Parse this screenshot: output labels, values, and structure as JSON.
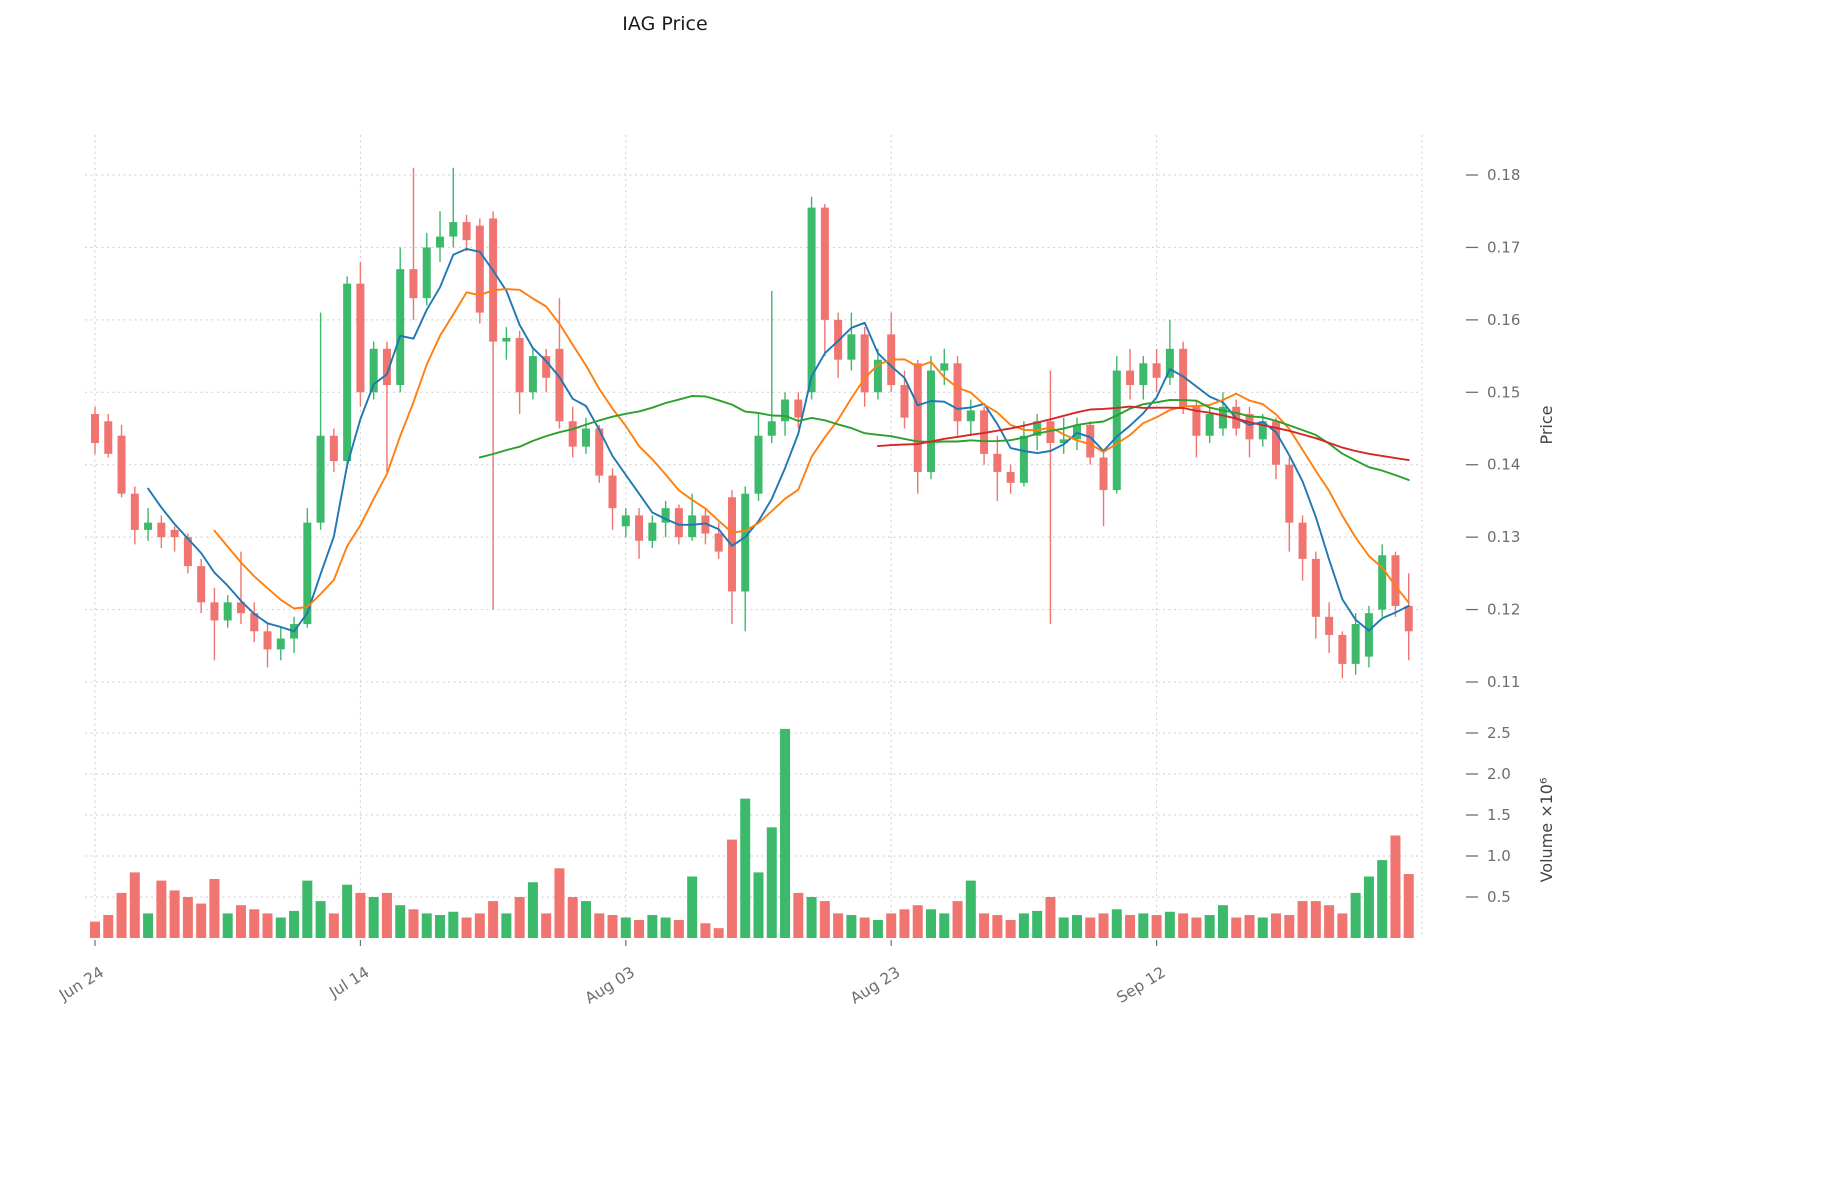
{
  "chart_data": {
    "type": "candlestick",
    "title": "IAG Price",
    "ylabel_price": "Price",
    "ylabel_volume": "Volume ×10⁶",
    "price_ticks": [
      0.11,
      0.12,
      0.13,
      0.14,
      0.15,
      0.16,
      0.17,
      0.18
    ],
    "price_range": [
      0.11,
      0.18
    ],
    "volume_ticks": [
      0.5,
      1.0,
      1.5,
      2.0,
      2.5
    ],
    "volume_range": [
      0,
      2.7
    ],
    "x_ticks": [
      [
        0,
        "Jun 24"
      ],
      [
        20,
        "Jul 14"
      ],
      [
        40,
        "Aug 03"
      ],
      [
        60,
        "Aug 23"
      ],
      [
        80,
        "Sep 12"
      ]
    ],
    "extra_gridline_indices": [
      100
    ],
    "grid": true,
    "legend_position": "none",
    "mavs": [
      {
        "period": 5,
        "color": "#1f77b4"
      },
      {
        "period": 10,
        "color": "#ff7f0e"
      },
      {
        "period": 30,
        "color": "#2ca02c"
      },
      {
        "period": 60,
        "color": "#d62728"
      }
    ],
    "colors": {
      "up": "#3cb96a",
      "down": "#f07470",
      "grid": "#c9c9c9",
      "tick_text": "#6e6e6e",
      "axis_label_text": "#444444",
      "title_text": "#1c1c1c"
    },
    "candle_columns": [
      "date",
      "open",
      "high",
      "low",
      "close",
      "volume_millions"
    ],
    "candles": [
      [
        "2024-06-24",
        0.147,
        0.148,
        0.1415,
        0.143,
        0.2
      ],
      [
        "2024-06-25",
        0.146,
        0.147,
        0.141,
        0.1415,
        0.28
      ],
      [
        "2024-06-26",
        0.144,
        0.1455,
        0.1355,
        0.136,
        0.55
      ],
      [
        "2024-06-27",
        0.136,
        0.137,
        0.129,
        0.131,
        0.8
      ],
      [
        "2024-06-28",
        0.131,
        0.134,
        0.1295,
        0.132,
        0.3
      ],
      [
        "2024-06-29",
        0.132,
        0.133,
        0.1285,
        0.13,
        0.7
      ],
      [
        "2024-06-30",
        0.131,
        0.1315,
        0.128,
        0.13,
        0.58
      ],
      [
        "2024-07-01",
        0.13,
        0.1305,
        0.125,
        0.126,
        0.5
      ],
      [
        "2024-07-02",
        0.126,
        0.127,
        0.1195,
        0.121,
        0.42
      ],
      [
        "2024-07-03",
        0.121,
        0.123,
        0.113,
        0.1185,
        0.72
      ],
      [
        "2024-07-04",
        0.1185,
        0.122,
        0.1175,
        0.121,
        0.3
      ],
      [
        "2024-07-05",
        0.121,
        0.128,
        0.118,
        0.1195,
        0.4
      ],
      [
        "2024-07-06",
        0.1195,
        0.121,
        0.1155,
        0.117,
        0.35
      ],
      [
        "2024-07-07",
        0.117,
        0.118,
        0.112,
        0.1145,
        0.3
      ],
      [
        "2024-07-08",
        0.1145,
        0.1175,
        0.113,
        0.116,
        0.25
      ],
      [
        "2024-07-09",
        0.116,
        0.119,
        0.114,
        0.118,
        0.33
      ],
      [
        "2024-07-10",
        0.118,
        0.134,
        0.1175,
        0.132,
        0.7
      ],
      [
        "2024-07-11",
        0.132,
        0.161,
        0.131,
        0.144,
        0.45
      ],
      [
        "2024-07-12",
        0.144,
        0.145,
        0.139,
        0.1405,
        0.3
      ],
      [
        "2024-07-13",
        0.1405,
        0.166,
        0.1395,
        0.165,
        0.65
      ],
      [
        "2024-07-14",
        0.165,
        0.168,
        0.148,
        0.15,
        0.55
      ],
      [
        "2024-07-15",
        0.15,
        0.157,
        0.149,
        0.156,
        0.5
      ],
      [
        "2024-07-16",
        0.156,
        0.157,
        0.139,
        0.151,
        0.55
      ],
      [
        "2024-07-17",
        0.151,
        0.17,
        0.15,
        0.167,
        0.4
      ],
      [
        "2024-07-18",
        0.167,
        0.181,
        0.16,
        0.163,
        0.35
      ],
      [
        "2024-07-19",
        0.163,
        0.172,
        0.162,
        0.17,
        0.3
      ],
      [
        "2024-07-20",
        0.17,
        0.175,
        0.168,
        0.1715,
        0.28
      ],
      [
        "2024-07-21",
        0.1715,
        0.181,
        0.17,
        0.1735,
        0.32
      ],
      [
        "2024-07-22",
        0.1735,
        0.1745,
        0.1695,
        0.171,
        0.25
      ],
      [
        "2024-07-23",
        0.173,
        0.174,
        0.1595,
        0.161,
        0.3
      ],
      [
        "2024-07-24",
        0.174,
        0.175,
        0.12,
        0.157,
        0.45
      ],
      [
        "2024-07-25",
        0.157,
        0.159,
        0.1545,
        0.1575,
        0.3
      ],
      [
        "2024-07-26",
        0.1575,
        0.1585,
        0.147,
        0.15,
        0.5
      ],
      [
        "2024-07-27",
        0.15,
        0.156,
        0.149,
        0.155,
        0.68
      ],
      [
        "2024-07-28",
        0.155,
        0.156,
        0.15,
        0.152,
        0.3
      ],
      [
        "2024-07-29",
        0.156,
        0.163,
        0.145,
        0.146,
        0.85
      ],
      [
        "2024-07-30",
        0.146,
        0.148,
        0.141,
        0.1425,
        0.5
      ],
      [
        "2024-07-31",
        0.1425,
        0.1465,
        0.1415,
        0.145,
        0.45
      ],
      [
        "2024-08-01",
        0.145,
        0.1455,
        0.1375,
        0.1385,
        0.3
      ],
      [
        "2024-08-02",
        0.1385,
        0.1395,
        0.131,
        0.134,
        0.28
      ],
      [
        "2024-08-03",
        0.1315,
        0.134,
        0.13,
        0.133,
        0.25
      ],
      [
        "2024-08-04",
        0.133,
        0.134,
        0.127,
        0.1295,
        0.22
      ],
      [
        "2024-08-05",
        0.1295,
        0.133,
        0.1285,
        0.132,
        0.28
      ],
      [
        "2024-08-06",
        0.132,
        0.135,
        0.13,
        0.134,
        0.25
      ],
      [
        "2024-08-07",
        0.134,
        0.1345,
        0.129,
        0.13,
        0.22
      ],
      [
        "2024-08-08",
        0.13,
        0.136,
        0.1295,
        0.133,
        0.75
      ],
      [
        "2024-08-09",
        0.133,
        0.134,
        0.129,
        0.1305,
        0.18
      ],
      [
        "2024-08-10",
        0.1305,
        0.132,
        0.127,
        0.128,
        0.12
      ],
      [
        "2024-08-11",
        0.1355,
        0.1365,
        0.118,
        0.1225,
        1.2
      ],
      [
        "2024-08-12",
        0.1225,
        0.137,
        0.117,
        0.136,
        1.7
      ],
      [
        "2024-08-13",
        0.136,
        0.147,
        0.135,
        0.144,
        0.8
      ],
      [
        "2024-08-14",
        0.144,
        0.164,
        0.143,
        0.146,
        1.35
      ],
      [
        "2024-08-15",
        0.146,
        0.15,
        0.144,
        0.149,
        2.55
      ],
      [
        "2024-08-16",
        0.149,
        0.15,
        0.145,
        0.1465,
        0.55
      ],
      [
        "2024-08-17",
        0.15,
        0.177,
        0.149,
        0.1755,
        0.5
      ],
      [
        "2024-08-18",
        0.1755,
        0.176,
        0.155,
        0.16,
        0.45
      ],
      [
        "2024-08-19",
        0.16,
        0.161,
        0.152,
        0.1545,
        0.3
      ],
      [
        "2024-08-20",
        0.1545,
        0.161,
        0.153,
        0.158,
        0.28
      ],
      [
        "2024-08-21",
        0.158,
        0.159,
        0.148,
        0.15,
        0.25
      ],
      [
        "2024-08-22",
        0.15,
        0.156,
        0.149,
        0.1545,
        0.22
      ],
      [
        "2024-08-23",
        0.158,
        0.161,
        0.15,
        0.151,
        0.3
      ],
      [
        "2024-08-24",
        0.151,
        0.153,
        0.145,
        0.1465,
        0.35
      ],
      [
        "2024-08-25",
        0.154,
        0.1545,
        0.136,
        0.139,
        0.4
      ],
      [
        "2024-08-26",
        0.139,
        0.155,
        0.138,
        0.153,
        0.35
      ],
      [
        "2024-08-27",
        0.153,
        0.156,
        0.151,
        0.154,
        0.3
      ],
      [
        "2024-08-28",
        0.154,
        0.155,
        0.144,
        0.146,
        0.45
      ],
      [
        "2024-08-29",
        0.146,
        0.149,
        0.144,
        0.1475,
        0.7
      ],
      [
        "2024-08-30",
        0.1475,
        0.148,
        0.14,
        0.1415,
        0.3
      ],
      [
        "2024-08-31",
        0.1415,
        0.144,
        0.135,
        0.139,
        0.28
      ],
      [
        "2024-09-01",
        0.139,
        0.14,
        0.136,
        0.1375,
        0.22
      ],
      [
        "2024-09-02",
        0.1375,
        0.146,
        0.137,
        0.144,
        0.3
      ],
      [
        "2024-09-03",
        0.144,
        0.147,
        0.142,
        0.146,
        0.33
      ],
      [
        "2024-09-04",
        0.146,
        0.153,
        0.118,
        0.143,
        0.5
      ],
      [
        "2024-09-05",
        0.143,
        0.1465,
        0.1415,
        0.1435,
        0.25
      ],
      [
        "2024-09-06",
        0.1435,
        0.1465,
        0.142,
        0.1455,
        0.28
      ],
      [
        "2024-09-07",
        0.1455,
        0.146,
        0.14,
        0.141,
        0.25
      ],
      [
        "2024-09-08",
        0.141,
        0.142,
        0.1315,
        0.1365,
        0.3
      ],
      [
        "2024-09-09",
        0.1365,
        0.155,
        0.136,
        0.153,
        0.35
      ],
      [
        "2024-09-10",
        0.153,
        0.156,
        0.149,
        0.151,
        0.28
      ],
      [
        "2024-09-11",
        0.151,
        0.155,
        0.149,
        0.154,
        0.3
      ],
      [
        "2024-09-12",
        0.154,
        0.156,
        0.15,
        0.152,
        0.28
      ],
      [
        "2024-09-13",
        0.152,
        0.16,
        0.151,
        0.156,
        0.32
      ],
      [
        "2024-09-14",
        0.156,
        0.157,
        0.147,
        0.148,
        0.3
      ],
      [
        "2024-09-15",
        0.148,
        0.149,
        0.141,
        0.144,
        0.25
      ],
      [
        "2024-09-16",
        0.144,
        0.148,
        0.143,
        0.147,
        0.28
      ],
      [
        "2024-09-17",
        0.145,
        0.15,
        0.144,
        0.148,
        0.4
      ],
      [
        "2024-09-18",
        0.148,
        0.149,
        0.144,
        0.145,
        0.25
      ],
      [
        "2024-09-19",
        0.147,
        0.148,
        0.141,
        0.1435,
        0.28
      ],
      [
        "2024-09-20",
        0.1435,
        0.147,
        0.1425,
        0.146,
        0.25
      ],
      [
        "2024-09-21",
        0.146,
        0.1465,
        0.138,
        0.14,
        0.3
      ],
      [
        "2024-09-22",
        0.14,
        0.141,
        0.128,
        0.132,
        0.28
      ],
      [
        "2024-09-23",
        0.132,
        0.133,
        0.124,
        0.127,
        0.45
      ],
      [
        "2024-09-24",
        0.127,
        0.128,
        0.116,
        0.119,
        0.45
      ],
      [
        "2024-09-25",
        0.119,
        0.121,
        0.114,
        0.1165,
        0.4
      ],
      [
        "2024-09-26",
        0.1165,
        0.117,
        0.1105,
        0.1125,
        0.3
      ],
      [
        "2024-09-27",
        0.1125,
        0.1195,
        0.111,
        0.118,
        0.55
      ],
      [
        "2024-09-28",
        0.1135,
        0.1205,
        0.112,
        0.1195,
        0.75
      ],
      [
        "2024-09-29",
        0.12,
        0.129,
        0.119,
        0.1275,
        0.95
      ],
      [
        "2024-09-30",
        0.1275,
        0.128,
        0.119,
        0.1205,
        1.25
      ],
      [
        "2024-10-01",
        0.1205,
        0.125,
        0.113,
        0.117,
        0.78
      ]
    ]
  }
}
